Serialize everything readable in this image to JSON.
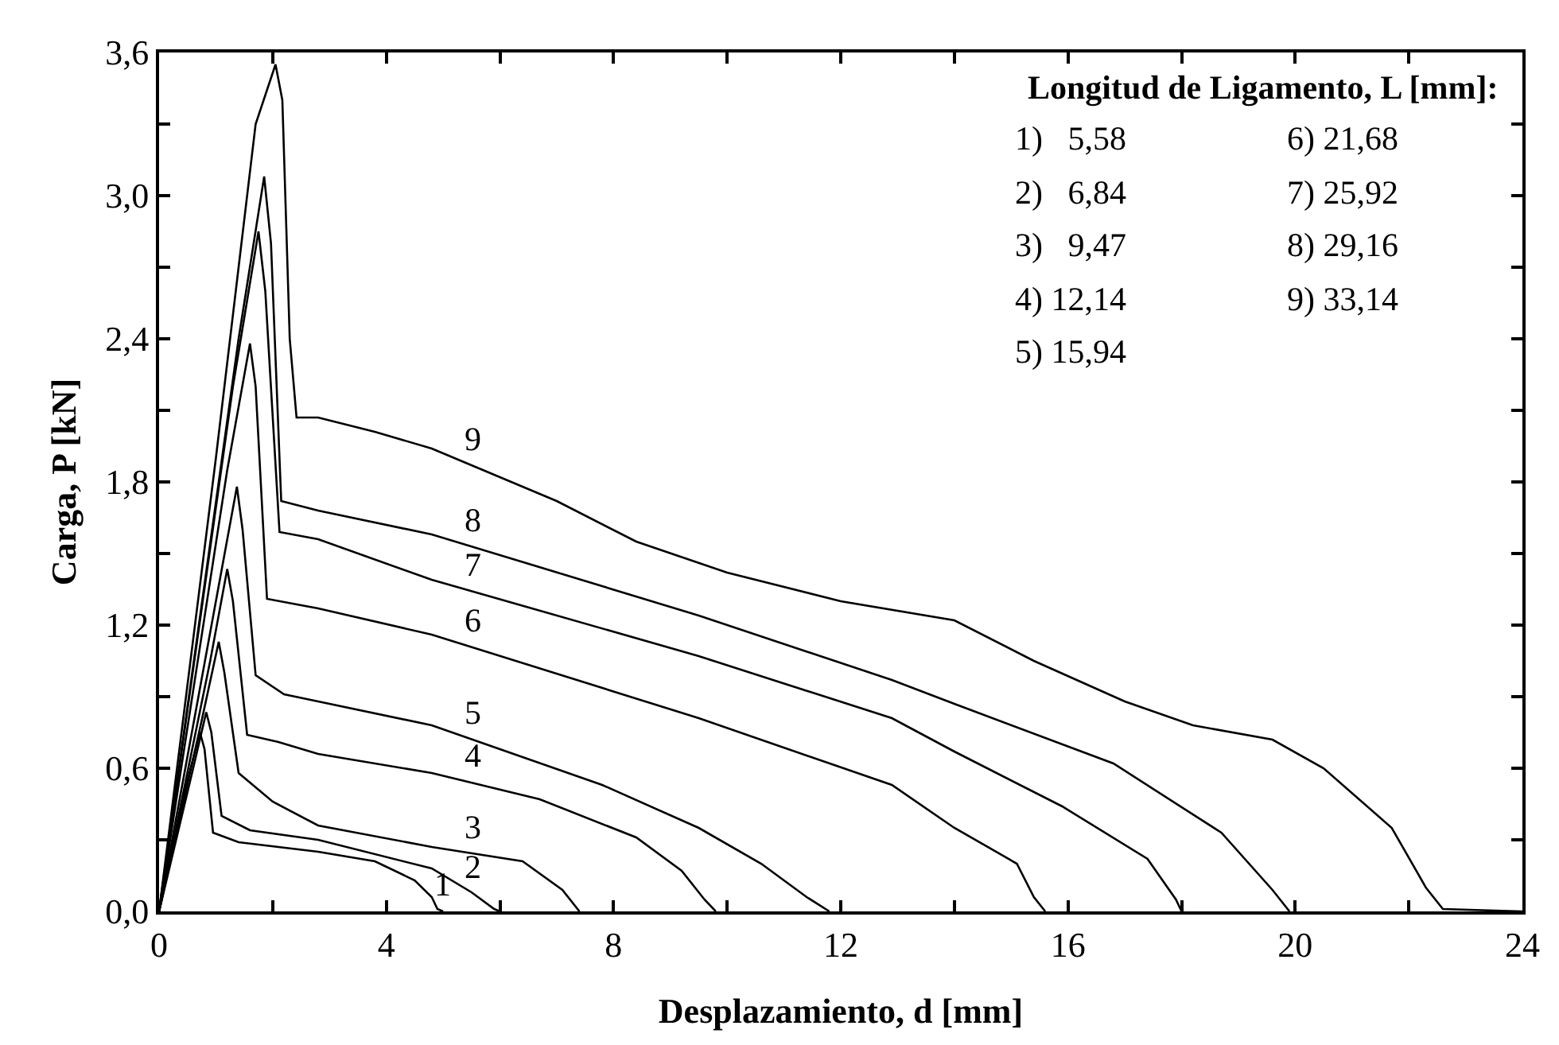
{
  "chart_data": {
    "type": "line",
    "xlabel": "Desplazamiento, d [mm]",
    "ylabel": "Carga, P [kN]",
    "xlim": [
      0,
      24
    ],
    "ylim": [
      0,
      3.6
    ],
    "xticks": [
      0,
      {
        "value": 2,
        "label": null
      },
      4,
      {
        "value": 6,
        "label": null
      },
      8,
      {
        "value": 10,
        "label": null
      },
      12,
      {
        "value": 14,
        "label": null
      },
      16,
      {
        "value": 18,
        "label": null
      },
      20,
      {
        "value": 22,
        "label": null
      },
      24
    ],
    "yticks": [
      {
        "value": 0,
        "label": "0,0"
      },
      {
        "value": 0.3,
        "label": null
      },
      {
        "value": 0.6,
        "label": "0,6"
      },
      {
        "value": 0.9,
        "label": null
      },
      {
        "value": 1.2,
        "label": "1,2"
      },
      {
        "value": 1.5,
        "label": null
      },
      {
        "value": 1.8,
        "label": "1,8"
      },
      {
        "value": 2.1,
        "label": null
      },
      {
        "value": 2.4,
        "label": "2,4"
      },
      {
        "value": 2.7,
        "label": null
      },
      {
        "value": 3.0,
        "label": "3,0"
      },
      {
        "value": 3.3,
        "label": null
      },
      {
        "value": 3.6,
        "label": "3,6"
      }
    ],
    "legend": false,
    "marker": "none",
    "line_style": "solid",
    "series": [
      {
        "name": "1",
        "color": "#000000",
        "x": [
          0,
          0.5,
          0.72,
          0.8,
          0.95,
          1.4,
          2.8,
          3.8,
          4.5,
          4.8,
          4.9,
          5.0
        ],
        "values": [
          0,
          0.55,
          0.75,
          0.68,
          0.33,
          0.29,
          0.25,
          0.21,
          0.13,
          0.06,
          0.01,
          0
        ]
      },
      {
        "name": "2",
        "color": "#000000",
        "x": [
          0,
          0.6,
          0.83,
          0.92,
          1.1,
          1.6,
          2.8,
          4.8,
          5.5,
          5.9,
          6.0
        ],
        "values": [
          0,
          0.6,
          0.835,
          0.75,
          0.4,
          0.34,
          0.3,
          0.18,
          0.08,
          0.01,
          0
        ]
      },
      {
        "name": "3",
        "color": "#000000",
        "x": [
          0,
          0.75,
          1.05,
          1.15,
          1.4,
          2.0,
          2.8,
          4.8,
          6.4,
          7.1,
          7.4
        ],
        "values": [
          0,
          0.8,
          1.13,
          1.0,
          0.58,
          0.46,
          0.36,
          0.27,
          0.21,
          0.09,
          0
        ]
      },
      {
        "name": "4",
        "color": "#000000",
        "x": [
          0,
          0.9,
          1.2,
          1.3,
          1.55,
          2.1,
          2.8,
          4.8,
          6.7,
          8.4,
          9.2,
          9.6,
          9.8
        ],
        "values": [
          0,
          1.05,
          1.435,
          1.3,
          0.74,
          0.71,
          0.66,
          0.58,
          0.47,
          0.31,
          0.17,
          0.05,
          0
        ]
      },
      {
        "name": "5",
        "color": "#000000",
        "x": [
          0,
          1.0,
          1.37,
          1.47,
          1.7,
          2.2,
          2.8,
          4.8,
          7.8,
          9.5,
          10.6,
          11.4,
          11.8
        ],
        "values": [
          0,
          1.3,
          1.78,
          1.6,
          0.99,
          0.91,
          0.88,
          0.78,
          0.53,
          0.35,
          0.2,
          0.06,
          0
        ]
      },
      {
        "name": "6",
        "color": "#000000",
        "x": [
          0,
          1.2,
          1.6,
          1.7,
          1.9,
          2.8,
          4.8,
          9.5,
          12.9,
          14.0,
          15.1,
          15.4,
          15.6
        ],
        "values": [
          0,
          1.85,
          2.38,
          2.2,
          1.31,
          1.27,
          1.16,
          0.81,
          0.53,
          0.35,
          0.2,
          0.06,
          0
        ]
      },
      {
        "name": "7",
        "color": "#000000",
        "x": [
          0,
          1.3,
          1.75,
          1.87,
          2.12,
          2.8,
          4.8,
          9.5,
          12.9,
          14.0,
          15.9,
          17.4,
          17.9,
          18.0
        ],
        "values": [
          0,
          2.2,
          2.85,
          2.6,
          1.59,
          1.56,
          1.39,
          1.07,
          0.81,
          0.67,
          0.44,
          0.22,
          0.05,
          0
        ]
      },
      {
        "name": "8",
        "color": "#000000",
        "x": [
          0,
          1.4,
          1.85,
          1.97,
          2.15,
          2.8,
          4.8,
          9.5,
          12.9,
          14.0,
          16.8,
          18.7,
          19.6,
          19.9
        ],
        "values": [
          0,
          2.4,
          3.08,
          2.8,
          1.72,
          1.68,
          1.58,
          1.24,
          0.97,
          0.87,
          0.62,
          0.33,
          0.09,
          0
        ]
      },
      {
        "name": "9",
        "color": "#000000",
        "x": [
          0,
          1.0,
          1.7,
          2.05,
          2.17,
          2.3,
          2.42,
          2.8,
          3.8,
          4.8,
          7.0,
          8.4,
          10.0,
          12.0,
          14.0,
          15.4,
          17.0,
          18.2,
          19.6,
          20.5,
          21.7,
          22.3,
          22.6,
          24.0
        ],
        "values": [
          0,
          1.9,
          3.3,
          3.55,
          3.4,
          2.4,
          2.07,
          2.07,
          2.01,
          1.94,
          1.72,
          1.55,
          1.42,
          1.3,
          1.22,
          1.05,
          0.88,
          0.78,
          0.72,
          0.6,
          0.35,
          0.1,
          0.01,
          0
        ]
      }
    ],
    "annotations": [
      "Longitud de Ligamento, L [mm]:",
      "1)   5,58",
      "2)   6,84",
      "3)   9,47",
      "4) 12,14",
      "5) 15,94",
      "6) 21,68",
      "7) 25,92",
      "8) 29,16",
      "9) 33,14"
    ]
  }
}
